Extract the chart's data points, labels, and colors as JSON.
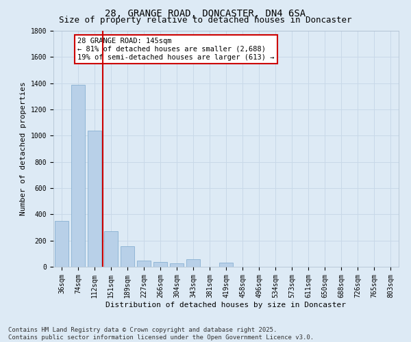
{
  "title_line1": "28, GRANGE ROAD, DONCASTER, DN4 6SA",
  "title_line2": "Size of property relative to detached houses in Doncaster",
  "xlabel": "Distribution of detached houses by size in Doncaster",
  "ylabel": "Number of detached properties",
  "categories": [
    "36sqm",
    "74sqm",
    "112sqm",
    "151sqm",
    "189sqm",
    "227sqm",
    "266sqm",
    "304sqm",
    "343sqm",
    "381sqm",
    "419sqm",
    "458sqm",
    "496sqm",
    "534sqm",
    "573sqm",
    "611sqm",
    "650sqm",
    "688sqm",
    "726sqm",
    "765sqm",
    "803sqm"
  ],
  "values": [
    350,
    1390,
    1040,
    270,
    155,
    45,
    35,
    25,
    55,
    0,
    30,
    0,
    0,
    0,
    0,
    0,
    0,
    0,
    0,
    0,
    0
  ],
  "bar_color": "#b8d0e8",
  "bar_edge_color": "#7aa8cc",
  "vline_color": "#cc0000",
  "vline_pos": 2.5,
  "annotation_text": "28 GRANGE ROAD: 145sqm\n← 81% of detached houses are smaller (2,688)\n19% of semi-detached houses are larger (613) →",
  "annotation_box_color": "#cc0000",
  "annotation_bg": "#ffffff",
  "ylim": [
    0,
    1800
  ],
  "yticks": [
    0,
    200,
    400,
    600,
    800,
    1000,
    1200,
    1400,
    1600,
    1800
  ],
  "grid_color": "#c8d8e8",
  "bg_color": "#ddeaf5",
  "footer": "Contains HM Land Registry data © Crown copyright and database right 2025.\nContains public sector information licensed under the Open Government Licence v3.0.",
  "title_fontsize": 10,
  "subtitle_fontsize": 9,
  "axis_label_fontsize": 8,
  "tick_fontsize": 7,
  "annotation_fontsize": 7.5,
  "footer_fontsize": 6.5
}
